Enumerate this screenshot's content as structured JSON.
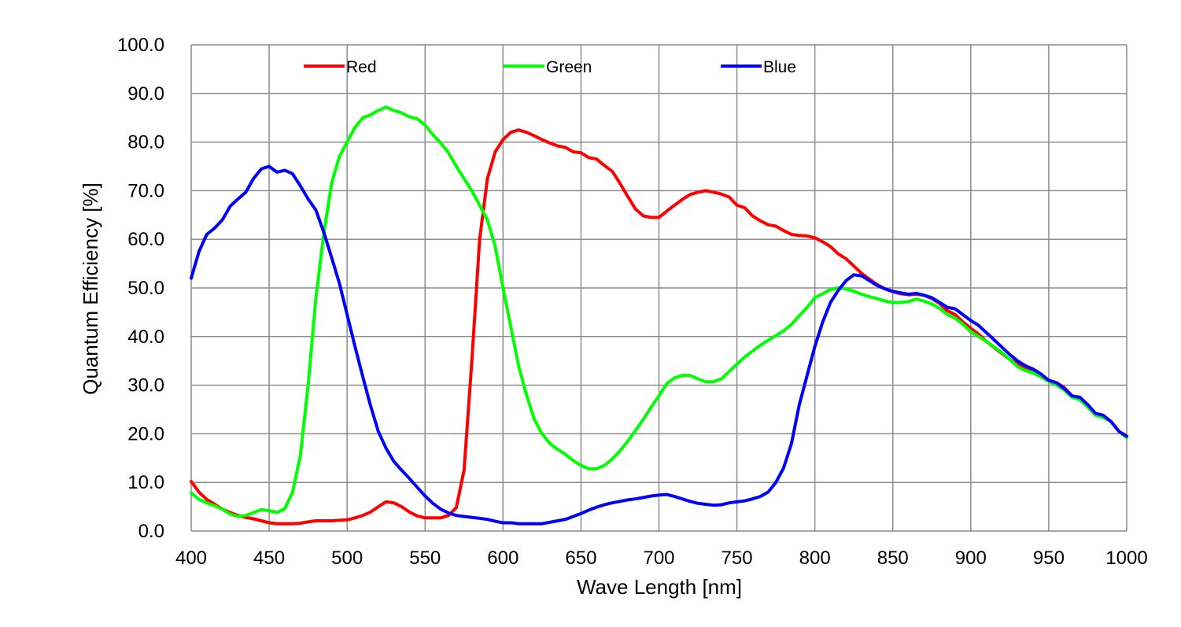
{
  "chart_data": {
    "type": "line",
    "xlabel": "Wave Length [nm]",
    "ylabel": "Quantum Efficiency [%]",
    "xlim": [
      400,
      1000
    ],
    "ylim": [
      0,
      100
    ],
    "xticks": [
      400,
      450,
      500,
      550,
      600,
      650,
      700,
      750,
      800,
      850,
      900,
      950,
      1000
    ],
    "yticks": [
      "0.0",
      "10.0",
      "20.0",
      "30.0",
      "40.0",
      "50.0",
      "60.0",
      "70.0",
      "80.0",
      "90.0",
      "100.0"
    ],
    "grid": true,
    "legend_position": "top",
    "series": [
      {
        "name": "Red",
        "color": "#ff0000",
        "x": [
          400,
          405,
          410,
          415,
          420,
          425,
          430,
          435,
          440,
          445,
          450,
          455,
          460,
          465,
          470,
          475,
          480,
          485,
          490,
          495,
          500,
          505,
          510,
          515,
          520,
          525,
          530,
          535,
          540,
          545,
          550,
          555,
          560,
          565,
          570,
          575,
          580,
          585,
          590,
          595,
          600,
          605,
          610,
          615,
          620,
          625,
          630,
          635,
          640,
          645,
          650,
          655,
          660,
          665,
          670,
          675,
          680,
          685,
          690,
          695,
          700,
          705,
          710,
          715,
          720,
          725,
          730,
          735,
          740,
          745,
          750,
          755,
          760,
          765,
          770,
          775,
          780,
          785,
          790,
          795,
          800,
          805,
          810,
          815,
          820,
          825,
          830,
          835,
          840,
          845,
          850,
          855,
          860,
          865,
          870,
          875,
          880,
          885,
          890,
          895,
          900,
          905,
          910,
          915,
          920,
          925,
          930,
          935,
          940,
          945,
          950,
          955,
          960,
          965,
          970,
          975,
          980,
          985,
          990,
          995,
          1000
        ],
        "y": [
          10.2,
          8.0,
          6.5,
          5.5,
          4.5,
          3.8,
          3.2,
          2.8,
          2.5,
          2.1,
          1.7,
          1.5,
          1.5,
          1.5,
          1.6,
          1.9,
          2.1,
          2.1,
          2.1,
          2.2,
          2.3,
          2.7,
          3.2,
          3.9,
          5.0,
          6.0,
          5.8,
          5.0,
          3.9,
          3.1,
          2.7,
          2.7,
          2.7,
          3.2,
          4.8,
          12.5,
          35.0,
          60.0,
          72.5,
          78.0,
          80.5,
          82.0,
          82.5,
          82.0,
          81.3,
          80.5,
          79.8,
          79.2,
          78.9,
          78.0,
          77.8,
          76.8,
          76.5,
          75.2,
          74.0,
          71.5,
          68.8,
          66.2,
          64.8,
          64.5,
          64.5,
          65.8,
          67.0,
          68.2,
          69.2,
          69.7,
          70.0,
          69.7,
          69.3,
          68.7,
          67.0,
          66.5,
          64.8,
          63.8,
          63.0,
          62.7,
          61.8,
          61.0,
          60.8,
          60.7,
          60.3,
          59.5,
          58.5,
          57.0,
          56.0,
          54.5,
          53.0,
          51.8,
          50.7,
          49.8,
          49.2,
          48.8,
          48.6,
          48.7,
          48.5,
          47.8,
          46.8,
          45.3,
          44.5,
          43.0,
          41.7,
          40.5,
          39.0,
          37.7,
          36.5,
          35.3,
          34.3,
          33.3,
          32.8,
          32.0,
          31.0,
          30.5,
          29.5,
          27.8,
          27.3,
          25.8,
          24.0,
          23.5,
          22.5,
          20.5,
          19.5
        ]
      },
      {
        "name": "Green",
        "color": "#00ff00",
        "x": [
          400,
          405,
          410,
          415,
          420,
          425,
          430,
          435,
          440,
          445,
          450,
          455,
          460,
          465,
          470,
          475,
          480,
          485,
          490,
          495,
          500,
          505,
          510,
          515,
          520,
          525,
          530,
          535,
          540,
          545,
          550,
          555,
          560,
          565,
          570,
          575,
          580,
          585,
          590,
          595,
          600,
          605,
          610,
          615,
          620,
          625,
          630,
          635,
          640,
          645,
          650,
          655,
          660,
          665,
          670,
          675,
          680,
          685,
          690,
          695,
          700,
          705,
          710,
          715,
          720,
          725,
          730,
          735,
          740,
          745,
          750,
          755,
          760,
          765,
          770,
          775,
          780,
          785,
          790,
          795,
          800,
          805,
          810,
          815,
          820,
          825,
          830,
          835,
          840,
          845,
          850,
          855,
          860,
          865,
          870,
          875,
          880,
          885,
          890,
          895,
          900,
          905,
          910,
          915,
          920,
          925,
          930,
          935,
          940,
          945,
          950,
          955,
          960,
          965,
          970,
          975,
          980,
          985,
          990,
          995,
          1000
        ],
        "y": [
          7.8,
          6.5,
          5.8,
          5.2,
          4.5,
          3.5,
          3.0,
          3.2,
          3.8,
          4.4,
          4.2,
          3.8,
          4.6,
          8.0,
          15.5,
          30.0,
          48.0,
          61.0,
          71.5,
          77.0,
          80.0,
          83.0,
          85.0,
          85.6,
          86.5,
          87.2,
          86.5,
          86.0,
          85.2,
          84.8,
          83.5,
          81.5,
          79.8,
          77.8,
          75.0,
          72.5,
          70.0,
          67.0,
          64.0,
          58.5,
          50.0,
          42.0,
          34.0,
          28.0,
          23.0,
          20.0,
          18.0,
          16.8,
          15.8,
          14.5,
          13.5,
          12.8,
          12.8,
          13.5,
          14.8,
          16.5,
          18.5,
          20.7,
          23.0,
          25.5,
          27.8,
          30.3,
          31.5,
          32.0,
          32.0,
          31.3,
          30.7,
          30.7,
          31.3,
          32.8,
          34.3,
          35.8,
          37.0,
          38.2,
          39.2,
          40.2,
          41.2,
          42.5,
          44.3,
          46.0,
          48.0,
          48.8,
          49.7,
          50.0,
          49.8,
          49.3,
          48.7,
          48.2,
          47.8,
          47.3,
          47.0,
          47.0,
          47.2,
          47.7,
          47.3,
          46.7,
          45.8,
          44.5,
          43.8,
          42.5,
          41.0,
          40.0,
          39.0,
          37.8,
          36.7,
          35.3,
          33.8,
          33.0,
          32.5,
          31.7,
          30.8,
          30.0,
          29.0,
          27.5,
          27.0,
          25.5,
          23.8,
          23.3,
          22.5,
          20.5,
          19.2
        ]
      },
      {
        "name": "Blue",
        "color": "#0000ff",
        "x": [
          400,
          405,
          410,
          415,
          420,
          425,
          430,
          435,
          440,
          445,
          450,
          455,
          460,
          465,
          470,
          475,
          480,
          485,
          490,
          495,
          500,
          505,
          510,
          515,
          520,
          525,
          530,
          535,
          540,
          545,
          550,
          555,
          560,
          565,
          570,
          575,
          580,
          585,
          590,
          595,
          600,
          605,
          610,
          615,
          620,
          625,
          630,
          635,
          640,
          645,
          650,
          655,
          660,
          665,
          670,
          675,
          680,
          685,
          690,
          695,
          700,
          705,
          710,
          715,
          720,
          725,
          730,
          735,
          740,
          745,
          750,
          755,
          760,
          765,
          770,
          775,
          780,
          785,
          790,
          795,
          800,
          805,
          810,
          815,
          820,
          825,
          830,
          835,
          840,
          845,
          850,
          855,
          860,
          865,
          870,
          875,
          880,
          885,
          890,
          895,
          900,
          905,
          910,
          915,
          920,
          925,
          930,
          935,
          940,
          945,
          950,
          955,
          960,
          965,
          970,
          975,
          980,
          985,
          990,
          995,
          1000
        ],
        "y": [
          52.0,
          57.5,
          61.0,
          62.3,
          64.0,
          66.8,
          68.3,
          69.7,
          72.5,
          74.5,
          75.0,
          73.8,
          74.2,
          73.5,
          71.0,
          68.3,
          66.0,
          61.5,
          56.3,
          51.0,
          44.5,
          38.0,
          31.8,
          25.8,
          20.5,
          17.0,
          14.3,
          12.5,
          10.8,
          9.0,
          7.2,
          5.7,
          4.5,
          3.7,
          3.2,
          3.0,
          2.8,
          2.6,
          2.4,
          2.0,
          1.7,
          1.7,
          1.5,
          1.5,
          1.5,
          1.5,
          1.8,
          2.1,
          2.4,
          3.0,
          3.6,
          4.3,
          4.9,
          5.4,
          5.8,
          6.1,
          6.4,
          6.6,
          6.9,
          7.2,
          7.4,
          7.5,
          7.1,
          6.6,
          6.1,
          5.7,
          5.5,
          5.3,
          5.4,
          5.8,
          6.0,
          6.2,
          6.6,
          7.1,
          8.0,
          10.0,
          13.0,
          18.0,
          26.0,
          32.0,
          38.0,
          43.0,
          47.0,
          49.5,
          51.5,
          52.7,
          52.5,
          51.5,
          50.5,
          49.8,
          49.3,
          49.0,
          48.7,
          48.9,
          48.5,
          48.0,
          47.0,
          46.0,
          45.7,
          44.5,
          43.3,
          42.3,
          40.8,
          39.3,
          37.8,
          36.3,
          35.0,
          34.0,
          33.3,
          32.3,
          31.0,
          30.5,
          29.3,
          27.8,
          27.5,
          26.0,
          24.2,
          23.8,
          22.5,
          20.5,
          19.5
        ]
      }
    ]
  }
}
